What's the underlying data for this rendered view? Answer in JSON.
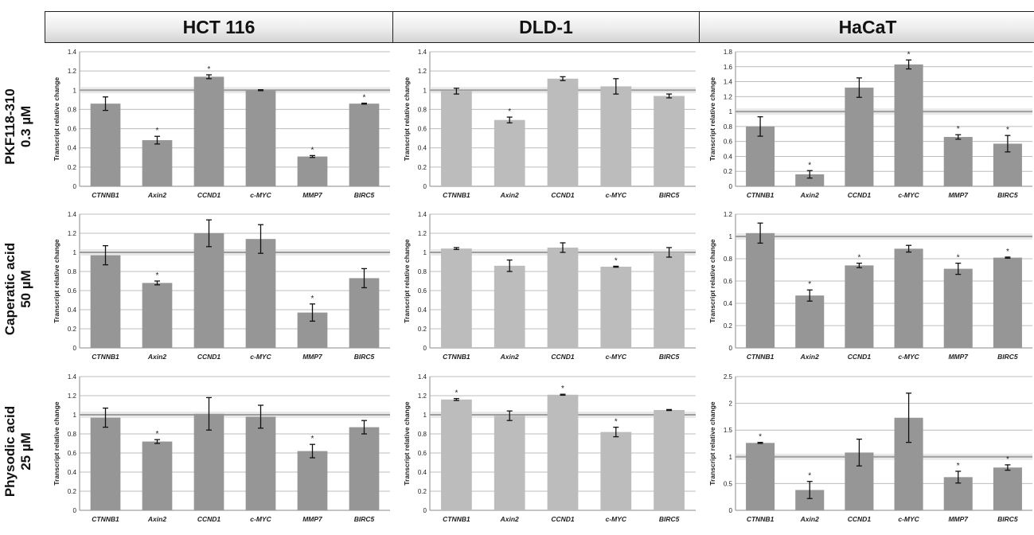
{
  "columns": [
    "HCT 116",
    "DLD-1",
    "HaCaT"
  ],
  "rows": [
    {
      "line1": "PKF118-310",
      "line2": "0.3 µM"
    },
    {
      "line1": "Caperatic acid",
      "line2": "50 µM"
    },
    {
      "line1": "Physodic acid",
      "line2": "25 µM"
    }
  ],
  "colors": {
    "hct": "#969696",
    "dld": "#bcbcbc",
    "hacat": "#969696",
    "baseline": "#9e9e9e"
  },
  "chart_data": [
    {
      "type": "bar",
      "row": 0,
      "col": 0,
      "ylabel": "Transcript relative change",
      "categories": [
        "CTNNB1",
        "Axin2",
        "CCND1",
        "c-MYC",
        "MMP7",
        "BIRC5"
      ],
      "values": [
        0.86,
        0.48,
        1.14,
        1.0,
        0.31,
        0.86
      ],
      "errors": [
        0.07,
        0.04,
        0.02,
        0.005,
        0.01,
        0.005
      ],
      "significant": [
        false,
        true,
        true,
        false,
        true,
        true
      ],
      "ylim": [
        0,
        1.4
      ],
      "ticks": [
        0,
        0.2,
        0.4,
        0.6,
        0.8,
        1,
        1.2,
        1.4
      ],
      "grid": true
    },
    {
      "type": "bar",
      "row": 0,
      "col": 1,
      "ylabel": "Transcript relative change",
      "categories": [
        "CTNNB1",
        "Axin2",
        "CCND1",
        "c-MYC",
        "BIRC5"
      ],
      "values": [
        0.99,
        0.69,
        1.12,
        1.04,
        0.94
      ],
      "errors": [
        0.03,
        0.03,
        0.02,
        0.08,
        0.02
      ],
      "significant": [
        false,
        true,
        false,
        false,
        false
      ],
      "ylim": [
        0,
        1.4
      ],
      "ticks": [
        0,
        0.2,
        0.4,
        0.6,
        0.8,
        1,
        1.2,
        1.4
      ],
      "grid": true
    },
    {
      "type": "bar",
      "row": 0,
      "col": 2,
      "ylabel": "Transcript relative change",
      "categories": [
        "CTNNB1",
        "Axin2",
        "CCND1",
        "c-MYC",
        "MMP7",
        "BIRC5"
      ],
      "values": [
        0.8,
        0.16,
        1.32,
        1.63,
        0.66,
        0.57
      ],
      "errors": [
        0.13,
        0.05,
        0.13,
        0.06,
        0.03,
        0.11
      ],
      "significant": [
        false,
        true,
        false,
        true,
        true,
        true
      ],
      "ylim": [
        0,
        1.8
      ],
      "ticks": [
        0,
        0.2,
        0.4,
        0.6,
        0.8,
        1,
        1.2,
        1.4,
        1.6,
        1.8
      ],
      "grid": true
    },
    {
      "type": "bar",
      "row": 1,
      "col": 0,
      "ylabel": "Transcript relative change",
      "categories": [
        "CTNNB1",
        "Axin2",
        "CCND1",
        "c-MYC",
        "MMP7",
        "BIRC5"
      ],
      "values": [
        0.97,
        0.68,
        1.2,
        1.14,
        0.37,
        0.73
      ],
      "errors": [
        0.1,
        0.02,
        0.14,
        0.15,
        0.09,
        0.1
      ],
      "significant": [
        false,
        true,
        false,
        false,
        true,
        false
      ],
      "ylim": [
        0,
        1.4
      ],
      "ticks": [
        0,
        0.2,
        0.4,
        0.6,
        0.8,
        1,
        1.2,
        1.4
      ],
      "grid": true
    },
    {
      "type": "bar",
      "row": 1,
      "col": 1,
      "ylabel": "Transcript relative change",
      "categories": [
        "CTNNB1",
        "Axin2",
        "CCND1",
        "c-MYC",
        "BIRC5"
      ],
      "values": [
        1.04,
        0.86,
        1.05,
        0.85,
        1.0
      ],
      "errors": [
        0.01,
        0.06,
        0.05,
        0.005,
        0.05
      ],
      "significant": [
        false,
        false,
        false,
        true,
        false
      ],
      "ylim": [
        0,
        1.4
      ],
      "ticks": [
        0,
        0.2,
        0.4,
        0.6,
        0.8,
        1,
        1.2,
        1.4
      ],
      "grid": true
    },
    {
      "type": "bar",
      "row": 1,
      "col": 2,
      "ylabel": "Transcript relative change",
      "categories": [
        "CTNNB1",
        "Axin2",
        "CCND1",
        "c-MYC",
        "MMP7",
        "BIRC5"
      ],
      "values": [
        1.03,
        0.47,
        0.74,
        0.89,
        0.71,
        0.81
      ],
      "errors": [
        0.09,
        0.05,
        0.02,
        0.03,
        0.05,
        0.005
      ],
      "significant": [
        false,
        true,
        true,
        false,
        true,
        true
      ],
      "ylim": [
        0,
        1.2
      ],
      "ticks": [
        0,
        0.2,
        0.4,
        0.6,
        0.8,
        1,
        1.2
      ],
      "grid": true
    },
    {
      "type": "bar",
      "row": 2,
      "col": 0,
      "ylabel": "Transcript relative change",
      "categories": [
        "CTNNB1",
        "Axin2",
        "CCND1",
        "c-MYC",
        "MMP7",
        "BIRC5"
      ],
      "values": [
        0.97,
        0.72,
        1.01,
        0.98,
        0.62,
        0.87
      ],
      "errors": [
        0.1,
        0.02,
        0.17,
        0.12,
        0.07,
        0.07
      ],
      "significant": [
        false,
        true,
        false,
        false,
        true,
        false
      ],
      "ylim": [
        0,
        1.4
      ],
      "ticks": [
        0,
        0.2,
        0.4,
        0.6,
        0.8,
        1,
        1.2,
        1.4
      ],
      "grid": true
    },
    {
      "type": "bar",
      "row": 2,
      "col": 1,
      "ylabel": "Transcript relative change",
      "categories": [
        "CTNNB1",
        "Axin2",
        "CCND1",
        "c-MYC",
        "BIRC5"
      ],
      "values": [
        1.16,
        0.99,
        1.21,
        0.82,
        1.05
      ],
      "errors": [
        0.01,
        0.05,
        0.005,
        0.05,
        0.005
      ],
      "significant": [
        true,
        false,
        true,
        true,
        false
      ],
      "ylim": [
        0,
        1.4
      ],
      "ticks": [
        0,
        0.2,
        0.4,
        0.6,
        0.8,
        1,
        1.2,
        1.4
      ],
      "grid": true
    },
    {
      "type": "bar",
      "row": 2,
      "col": 2,
      "ylabel": "Transcript relative change",
      "categories": [
        "CTNNB1",
        "Axin2",
        "CCND1",
        "c-MYC",
        "MMP7",
        "BIRC5"
      ],
      "values": [
        1.26,
        0.38,
        1.08,
        1.73,
        0.62,
        0.8
      ],
      "errors": [
        0.01,
        0.16,
        0.25,
        0.46,
        0.11,
        0.05
      ],
      "significant": [
        true,
        true,
        false,
        false,
        true,
        true
      ],
      "ylim": [
        0,
        2.5
      ],
      "ticks": [
        0,
        0.5,
        1,
        1.5,
        2,
        2.5
      ],
      "grid": true
    }
  ]
}
